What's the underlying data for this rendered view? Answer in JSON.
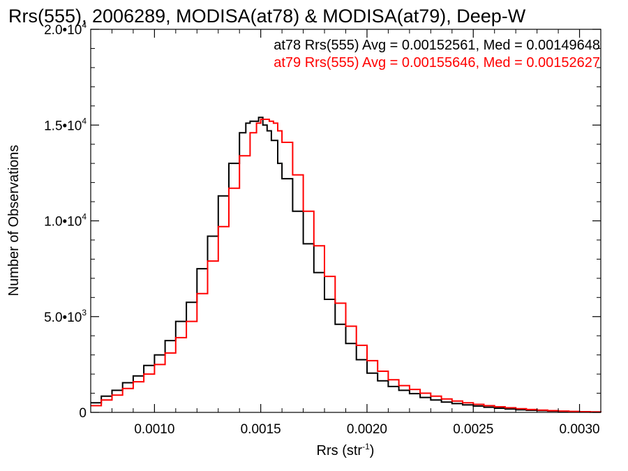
{
  "chart_data": {
    "type": "line",
    "title": "Rrs(555), 2006289, MODISA(at78) & MODISA(at79), Deep-W",
    "xlabel": "Rrs (str",
    "xlabel_sup": "-1",
    "xlabel_close": ")",
    "ylabel": "Number of Observations",
    "xlim": [
      0.0007,
      0.0031
    ],
    "ylim": [
      0,
      20000
    ],
    "x_ticks": [
      {
        "value": 0.001,
        "label": "0.0010"
      },
      {
        "value": 0.0015,
        "label": "0.0015"
      },
      {
        "value": 0.002,
        "label": "0.0020"
      },
      {
        "value": 0.0025,
        "label": "0.0025"
      },
      {
        "value": 0.003,
        "label": "0.0030"
      }
    ],
    "y_ticks": [
      {
        "value": 0,
        "mant": "0",
        "exp": ""
      },
      {
        "value": 5000,
        "mant": "5.0•10",
        "exp": "3"
      },
      {
        "value": 10000,
        "mant": "1.0•10",
        "exp": "4"
      },
      {
        "value": 15000,
        "mant": "1.5•10",
        "exp": "4"
      },
      {
        "value": 20000,
        "mant": "2.0•10",
        "exp": "4"
      }
    ],
    "grid": false,
    "series": [
      {
        "name": "at78",
        "legend": "at78 Rrs(555) Avg = 0.00152561, Med = 0.00149648",
        "color": "#000000",
        "x": [
          0.0007,
          0.00075,
          0.0008,
          0.00085,
          0.0009,
          0.00095,
          0.001,
          0.00105,
          0.0011,
          0.00115,
          0.0012,
          0.00125,
          0.0013,
          0.00135,
          0.0014,
          0.00143,
          0.00145,
          0.00147,
          0.00149,
          0.00151,
          0.00153,
          0.00155,
          0.00158,
          0.0016,
          0.00165,
          0.0017,
          0.00175,
          0.0018,
          0.00185,
          0.0019,
          0.00195,
          0.002,
          0.00205,
          0.0021,
          0.00215,
          0.0022,
          0.00225,
          0.0023,
          0.00235,
          0.0024,
          0.00245,
          0.0025,
          0.00255,
          0.0026,
          0.00265,
          0.0027,
          0.00275,
          0.0028,
          0.00285,
          0.0029,
          0.00295,
          0.003,
          0.00305,
          0.0031
        ],
        "values": [
          500,
          850,
          1150,
          1550,
          1900,
          2450,
          3000,
          3750,
          4750,
          5750,
          7500,
          9200,
          11300,
          13000,
          14600,
          15100,
          15200,
          15200,
          15400,
          15000,
          14700,
          14200,
          13000,
          12200,
          10500,
          8800,
          7300,
          5900,
          4600,
          3600,
          2750,
          2050,
          1650,
          1350,
          1150,
          980,
          780,
          650,
          540,
          460,
          390,
          330,
          270,
          220,
          180,
          140,
          110,
          90,
          70,
          50,
          35,
          25,
          15,
          10
        ]
      },
      {
        "name": "at79",
        "legend": "at79 Rrs(555) Avg = 0.00155646, Med = 0.00152627",
        "color": "#ff0000",
        "x": [
          0.0007,
          0.00075,
          0.0008,
          0.00085,
          0.0009,
          0.00095,
          0.001,
          0.00105,
          0.0011,
          0.00115,
          0.0012,
          0.00125,
          0.0013,
          0.00135,
          0.0014,
          0.00145,
          0.00148,
          0.0015,
          0.00152,
          0.00154,
          0.00156,
          0.00158,
          0.0016,
          0.00165,
          0.0017,
          0.00175,
          0.0018,
          0.00185,
          0.0019,
          0.00195,
          0.002,
          0.00205,
          0.0021,
          0.00215,
          0.0022,
          0.00225,
          0.0023,
          0.00235,
          0.0024,
          0.00245,
          0.0025,
          0.00255,
          0.0026,
          0.00265,
          0.0027,
          0.00275,
          0.0028,
          0.00285,
          0.0029,
          0.00295,
          0.003,
          0.00305,
          0.0031
        ],
        "values": [
          350,
          650,
          900,
          1250,
          1600,
          2000,
          2500,
          3100,
          3900,
          4750,
          6200,
          7900,
          9700,
          11700,
          13400,
          14600,
          15100,
          15300,
          15300,
          15200,
          15100,
          14700,
          14100,
          12400,
          10500,
          8700,
          7100,
          5700,
          4500,
          3500,
          2700,
          2150,
          1700,
          1400,
          1200,
          1000,
          850,
          700,
          590,
          500,
          420,
          350,
          290,
          240,
          190,
          150,
          120,
          90,
          70,
          50,
          35,
          25,
          15
        ]
      }
    ]
  }
}
